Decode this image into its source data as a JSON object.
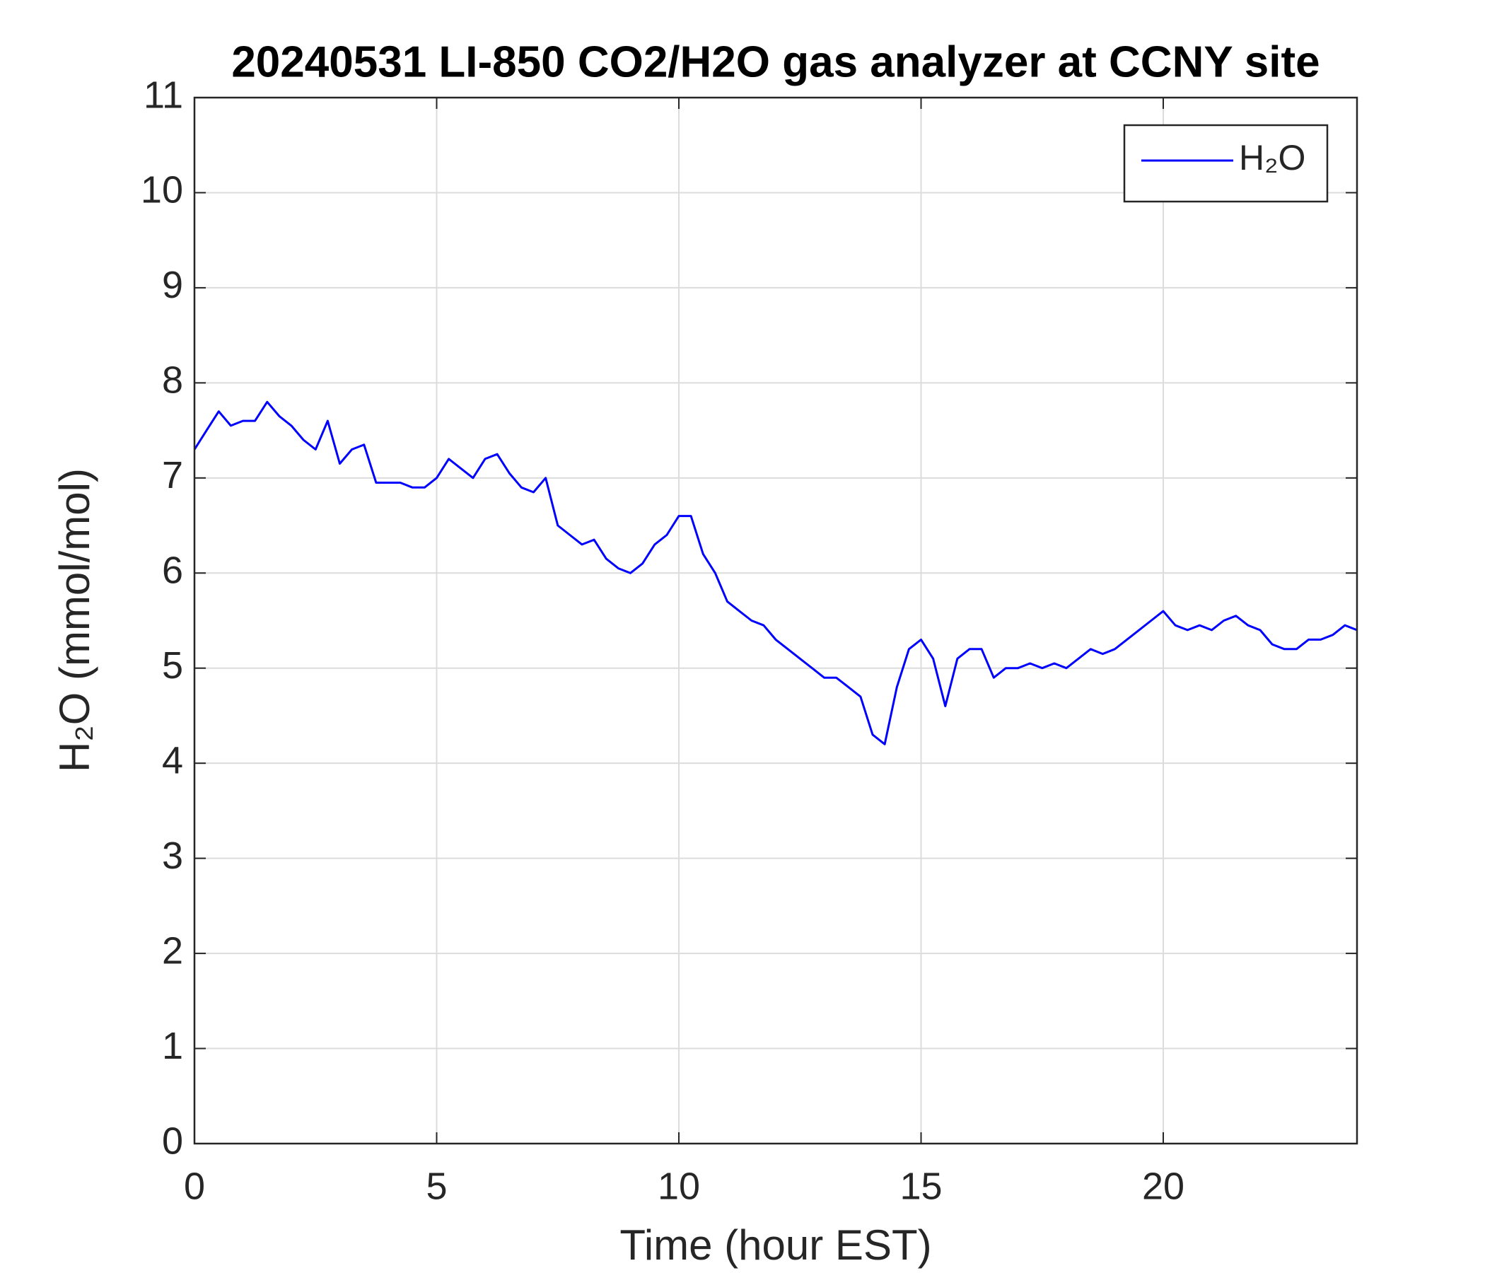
{
  "chart_data": {
    "type": "line",
    "title": "20240531 LI-850 CO2/H2O gas analyzer at CCNY site",
    "x_label": "Time (hour EST)",
    "y_label": "H₂O (mmol/mol)",
    "x": [
      0,
      0.25,
      0.5,
      0.75,
      1,
      1.25,
      1.5,
      1.75,
      2,
      2.25,
      2.5,
      2.75,
      3,
      3.25,
      3.5,
      3.75,
      4,
      4.25,
      4.5,
      4.75,
      5,
      5.25,
      5.5,
      5.75,
      6,
      6.25,
      6.5,
      6.75,
      7,
      7.25,
      7.5,
      7.75,
      8,
      8.25,
      8.5,
      8.75,
      9,
      9.25,
      9.5,
      9.75,
      10,
      10.25,
      10.5,
      10.75,
      11,
      11.25,
      11.5,
      11.75,
      12,
      12.25,
      12.5,
      12.75,
      13,
      13.25,
      13.5,
      13.75,
      14,
      14.25,
      14.5,
      14.75,
      15,
      15.25,
      15.5,
      15.75,
      16,
      16.25,
      16.5,
      16.75,
      17,
      17.25,
      17.5,
      17.75,
      18,
      18.25,
      18.5,
      18.75,
      19,
      19.25,
      19.5,
      19.75,
      20,
      20.25,
      20.5,
      20.75,
      21,
      21.25,
      21.5,
      21.75,
      22,
      22.25,
      22.5,
      22.75,
      23,
      23.25,
      23.5,
      23.75,
      24
    ],
    "series": [
      {
        "name": "H₂O",
        "color": "#0000ff",
        "values": [
          7.3,
          7.5,
          7.7,
          7.55,
          7.6,
          7.6,
          7.8,
          7.65,
          7.55,
          7.4,
          7.3,
          7.6,
          7.15,
          7.3,
          7.35,
          6.95,
          6.95,
          6.95,
          6.9,
          6.9,
          7.0,
          7.2,
          7.1,
          7.0,
          7.2,
          7.25,
          7.05,
          6.9,
          6.85,
          7.0,
          6.5,
          6.4,
          6.3,
          6.35,
          6.15,
          6.05,
          6.0,
          6.1,
          6.3,
          6.4,
          6.6,
          6.6,
          6.2,
          6.0,
          5.7,
          5.6,
          5.5,
          5.45,
          5.3,
          5.2,
          5.1,
          5.0,
          4.9,
          4.9,
          4.8,
          4.7,
          4.3,
          4.2,
          4.8,
          5.2,
          5.3,
          5.1,
          4.6,
          5.1,
          5.2,
          5.2,
          4.9,
          5.0,
          5.0,
          5.05,
          5.0,
          5.05,
          5.0,
          5.1,
          5.2,
          5.15,
          5.2,
          5.3,
          5.4,
          5.5,
          5.6,
          5.45,
          5.4,
          5.45,
          5.4,
          5.5,
          5.55,
          5.45,
          5.4,
          5.25,
          5.2,
          5.2,
          5.3,
          5.3,
          5.35,
          5.45,
          5.4
        ]
      }
    ],
    "xlim": [
      0,
      24
    ],
    "xticks": [
      0,
      5,
      10,
      15,
      20
    ],
    "ylim": [
      0,
      11
    ],
    "yticks": [
      0,
      1,
      2,
      3,
      4,
      5,
      6,
      7,
      8,
      9,
      10,
      11
    ],
    "grid": true,
    "legend": "northeast"
  }
}
